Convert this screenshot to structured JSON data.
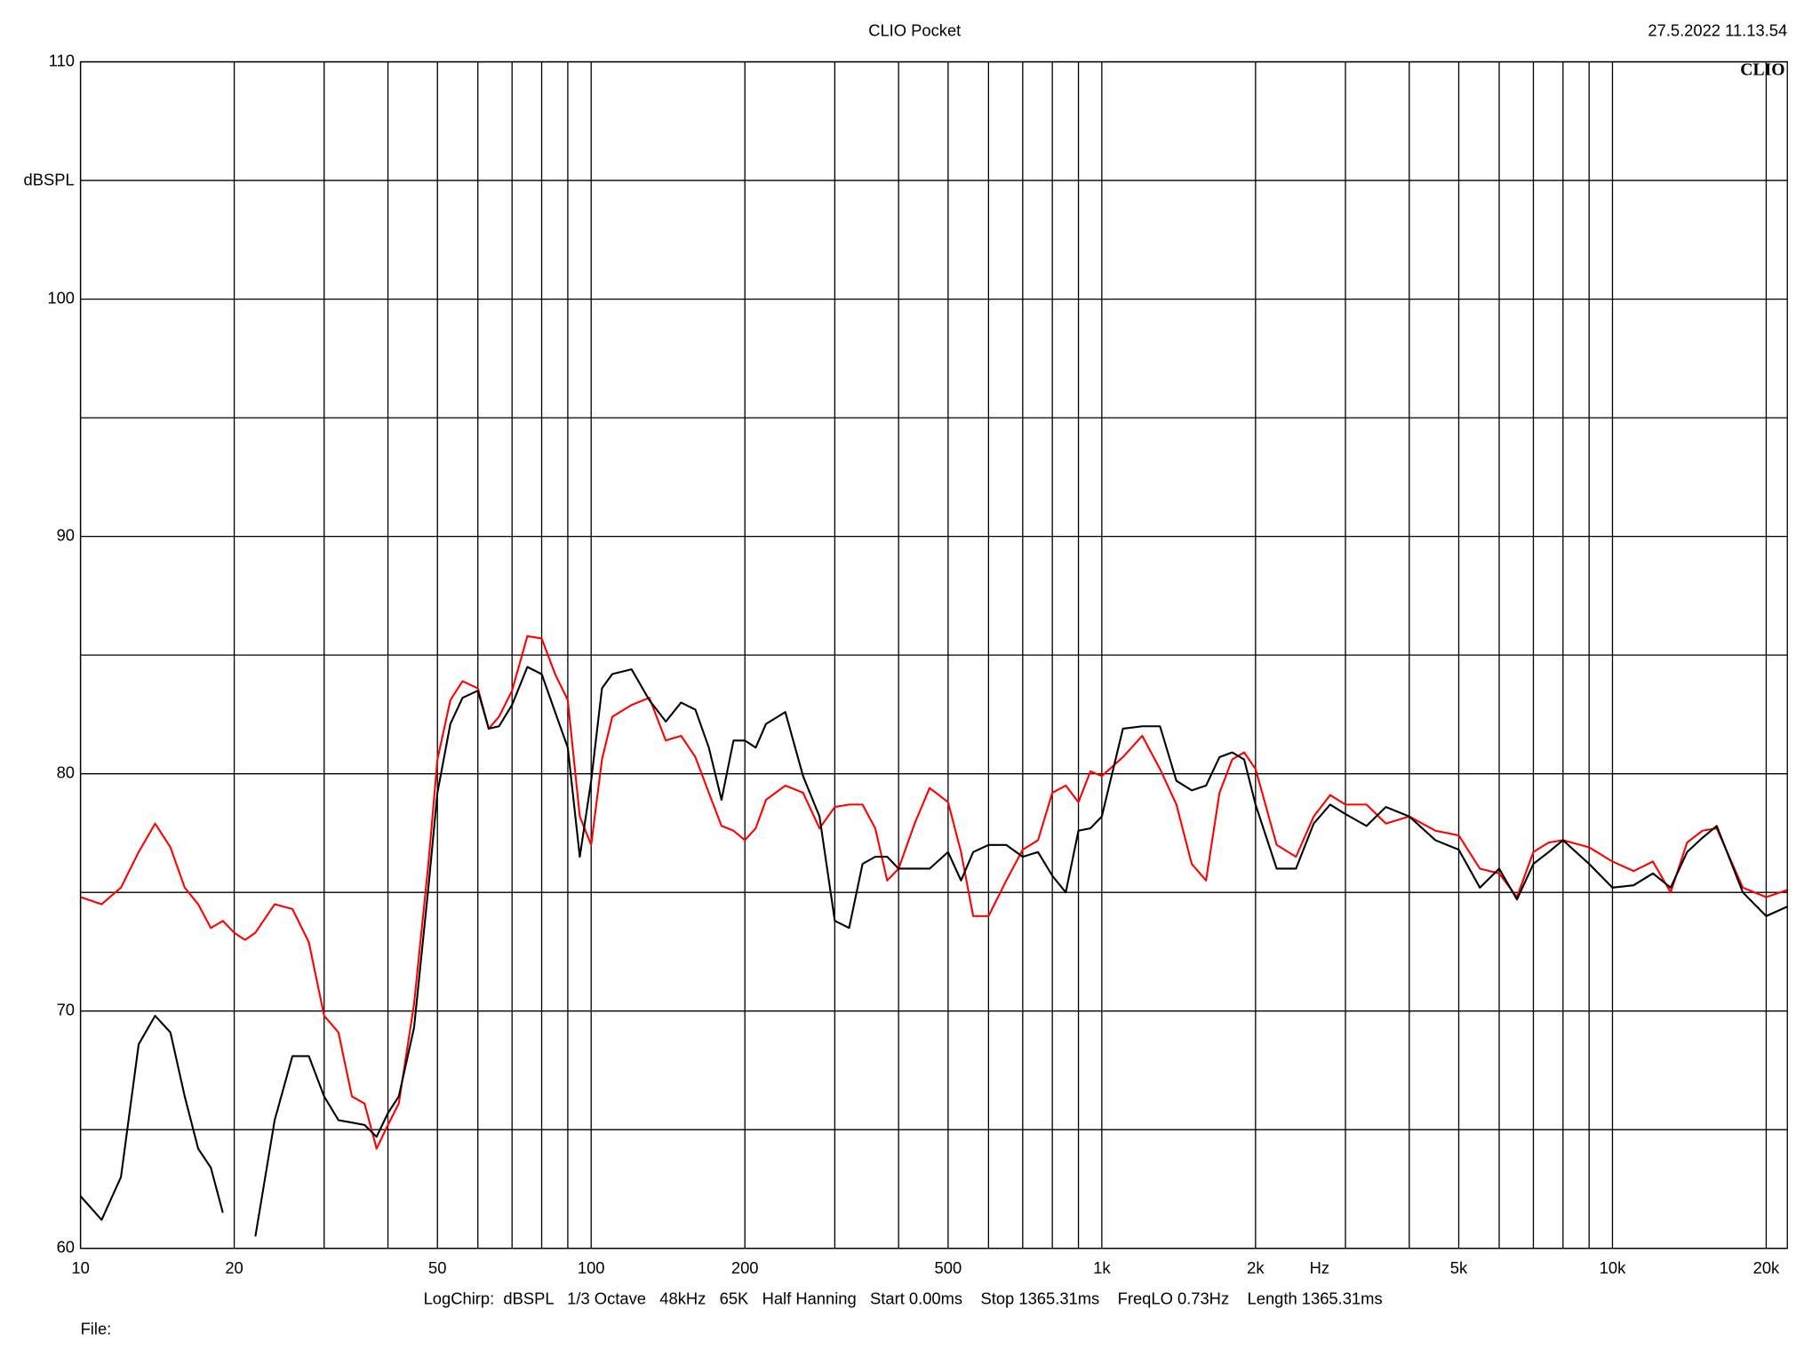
{
  "chart_data": {
    "type": "line",
    "title": "CLIO Pocket",
    "timestamp": "27.5.2022 11.13.54",
    "logo": "CLIO",
    "y_label": "dBSPL",
    "x_label": "Hz",
    "footer": "LogChirp:  dBSPL   1/3 Octave   48kHz   65K   Half Hanning   Start 0.00ms    Stop 1365.31ms    FreqLO 0.73Hz    Length 1365.31ms",
    "file_label": "File:",
    "x_scale": "log",
    "grid": true,
    "xlim": [
      10,
      22000
    ],
    "ylim": [
      60,
      110
    ],
    "yticks": [
      60,
      70,
      80,
      90,
      100,
      110
    ],
    "yminor": [
      65,
      75,
      85,
      95,
      105
    ],
    "xticks": [
      10,
      20,
      50,
      100,
      200,
      500,
      {
        "value": 1000,
        "label": "1k"
      },
      {
        "value": 2000,
        "label": "2k"
      },
      {
        "value": 5000,
        "label": "5k"
      },
      {
        "value": 10000,
        "label": "10k"
      },
      {
        "value": 20000,
        "label": "20k"
      }
    ],
    "xminor": [
      30,
      40,
      60,
      70,
      80,
      90,
      300,
      400,
      600,
      700,
      800,
      900,
      3000,
      4000,
      6000,
      7000,
      8000,
      9000
    ],
    "x": [
      10,
      11,
      12,
      13,
      14,
      15,
      16,
      17,
      18,
      19,
      20,
      21,
      22,
      24,
      26,
      28,
      30,
      32,
      34,
      36,
      38,
      40,
      42,
      45,
      48,
      50,
      53,
      56,
      60,
      63,
      66,
      70,
      75,
      80,
      85,
      90,
      95,
      100,
      105,
      110,
      120,
      130,
      140,
      150,
      160,
      170,
      180,
      190,
      200,
      210,
      220,
      240,
      260,
      280,
      300,
      320,
      340,
      360,
      380,
      400,
      430,
      460,
      500,
      530,
      560,
      600,
      650,
      700,
      750,
      800,
      850,
      900,
      950,
      1000,
      1100,
      1200,
      1300,
      1400,
      1500,
      1600,
      1700,
      1800,
      1900,
      2000,
      2200,
      2400,
      2600,
      2800,
      3000,
      3300,
      3600,
      4000,
      4500,
      5000,
      5500,
      6000,
      6500,
      7000,
      7500,
      8000,
      9000,
      10000,
      11000,
      12000,
      13000,
      14000,
      15000,
      16000,
      18000,
      20000,
      22000
    ],
    "series": [
      {
        "color": "#000000",
        "values": [
          62.2,
          61.2,
          63.0,
          68.6,
          69.8,
          69.1,
          66.4,
          64.2,
          63.4,
          61.5,
          null,
          null,
          60.5,
          65.4,
          68.1,
          68.1,
          66.4,
          65.4,
          65.3,
          65.2,
          64.7,
          65.7,
          66.4,
          69.3,
          75.2,
          79.2,
          82.1,
          83.2,
          83.5,
          81.9,
          82.0,
          82.9,
          84.5,
          84.2,
          82.6,
          81.1,
          76.5,
          79.7,
          83.6,
          84.2,
          84.4,
          83.1,
          82.2,
          83.0,
          82.7,
          81.1,
          78.9,
          81.4,
          81.4,
          81.1,
          82.1,
          82.6,
          79.9,
          78.2,
          73.8,
          73.5,
          76.2,
          76.5,
          76.5,
          76.0,
          76.0,
          76.0,
          76.7,
          75.5,
          76.7,
          77.0,
          77.0,
          76.5,
          76.7,
          75.7,
          75.0,
          77.6,
          77.7,
          78.2,
          81.9,
          82.0,
          82.0,
          79.7,
          79.3,
          79.5,
          80.7,
          80.9,
          80.6,
          78.7,
          76.0,
          76.0,
          77.9,
          78.7,
          78.3,
          77.8,
          78.6,
          78.2,
          77.2,
          76.8,
          75.2,
          76.0,
          74.7,
          76.2,
          76.7,
          77.2,
          76.2,
          75.2,
          75.3,
          75.8,
          75.2,
          76.7,
          77.3,
          77.8,
          75.0,
          74.0,
          74.4
        ]
      },
      {
        "color": "#ff0000",
        "values": [
          74.8,
          74.5,
          75.2,
          76.7,
          77.9,
          76.9,
          75.2,
          74.5,
          73.5,
          73.8,
          73.3,
          73.0,
          73.3,
          74.5,
          74.3,
          72.9,
          69.8,
          69.1,
          66.4,
          66.1,
          64.2,
          65.2,
          66.1,
          70.3,
          76.2,
          80.6,
          83.1,
          83.9,
          83.6,
          81.9,
          82.4,
          83.5,
          85.8,
          85.7,
          84.2,
          83.1,
          78.2,
          77.0,
          80.6,
          82.4,
          82.9,
          83.2,
          81.4,
          81.6,
          80.7,
          79.2,
          77.8,
          77.6,
          77.2,
          77.7,
          78.9,
          79.5,
          79.2,
          77.7,
          78.6,
          78.7,
          78.7,
          77.7,
          75.5,
          76.0,
          77.9,
          79.4,
          78.8,
          76.7,
          74.0,
          74.0,
          75.5,
          76.8,
          77.2,
          79.2,
          79.5,
          78.8,
          80.1,
          79.9,
          80.7,
          81.6,
          80.2,
          78.7,
          76.2,
          75.5,
          79.2,
          80.6,
          80.9,
          80.2,
          77.0,
          76.5,
          78.2,
          79.1,
          78.7,
          78.7,
          77.9,
          78.2,
          77.6,
          77.4,
          76.0,
          75.8,
          74.8,
          76.7,
          77.1,
          77.2,
          76.9,
          76.3,
          75.9,
          76.3,
          75.0,
          77.1,
          77.6,
          77.7,
          75.2,
          74.8,
          75.1
        ]
      }
    ]
  }
}
